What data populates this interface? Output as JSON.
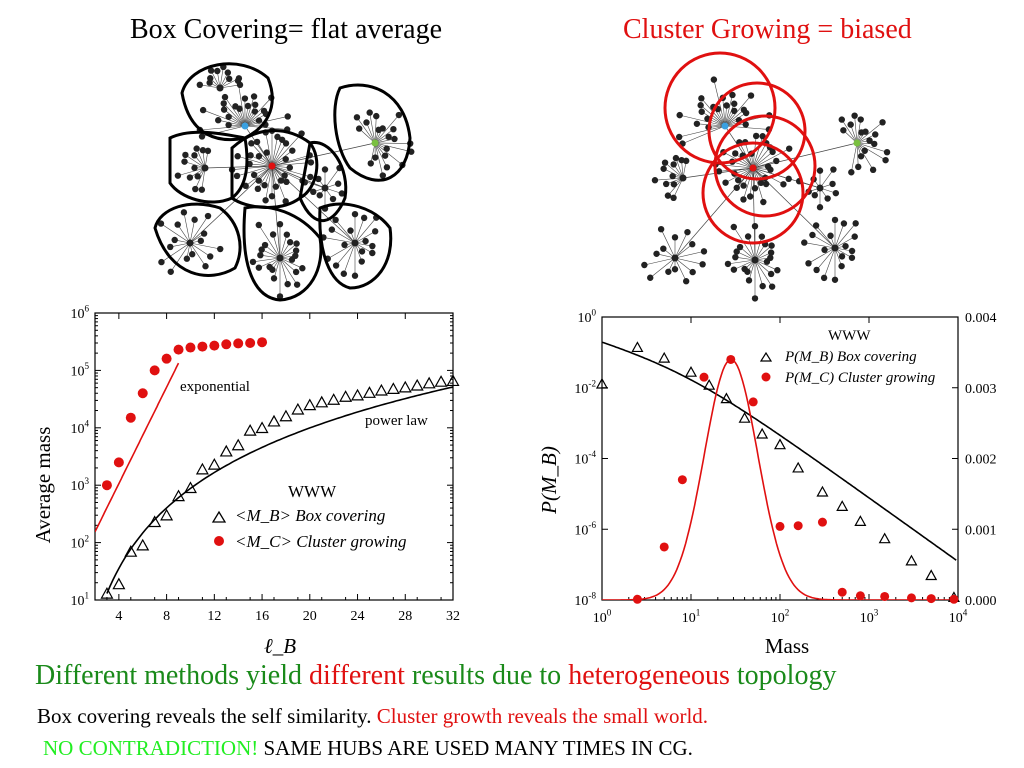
{
  "titles": {
    "left": "Box Covering= flat average",
    "right": "Cluster Growing = biased"
  },
  "colors": {
    "red": "#e01010",
    "green": "#1a8a1a",
    "lime": "#22ee22",
    "black": "#000000"
  },
  "footer": {
    "line1": {
      "a": "Different methods yield ",
      "b": "different",
      "c": " results due to ",
      "d": "heterogeneous",
      "e": " topology"
    },
    "line2": {
      "a": "Box covering reveals the self similarity. ",
      "b": "Cluster growth reveals the small world."
    },
    "line3": {
      "a": "NO CONTRADICTION! ",
      "b": "SAME HUBS ARE USED MANY TIMES IN CG."
    }
  },
  "chart_data": [
    {
      "type": "scatter",
      "ylabel": "Average mass",
      "xlabel": "ℓ_B",
      "xlim": [
        2,
        32
      ],
      "ylim": [
        10,
        1000000
      ],
      "yscale": "log",
      "xticks": [
        "4",
        "8",
        "12",
        "16",
        "20",
        "24",
        "28",
        "32"
      ],
      "yticks": [
        "10^1",
        "10^2",
        "10^3",
        "10^4",
        "10^5",
        "10^6"
      ],
      "legend_title": "WWW",
      "annotations": [
        "exponential",
        "power law"
      ],
      "series": [
        {
          "name": "<M_B> Box covering",
          "marker": "open-triangle",
          "points": [
            [
              3,
              13
            ],
            [
              4,
              19
            ],
            [
              5,
              70
            ],
            [
              6,
              90
            ],
            [
              7,
              230
            ],
            [
              8,
              300
            ],
            [
              9,
              650
            ],
            [
              10,
              900
            ],
            [
              11,
              1900
            ],
            [
              12,
              2300
            ],
            [
              13,
              3900
            ],
            [
              14,
              5000
            ],
            [
              15,
              9000
            ],
            [
              16,
              10000
            ],
            [
              17,
              13000
            ],
            [
              18,
              16000
            ],
            [
              19,
              21000
            ],
            [
              20,
              25000
            ],
            [
              21,
              28000
            ],
            [
              22,
              31000
            ],
            [
              23,
              35000
            ],
            [
              24,
              37000
            ],
            [
              25,
              41000
            ],
            [
              26,
              45000
            ],
            [
              27,
              48000
            ],
            [
              28,
              51000
            ],
            [
              29,
              55000
            ],
            [
              30,
              60000
            ],
            [
              31,
              64000
            ],
            [
              32,
              66000
            ]
          ]
        },
        {
          "name": "<M_C> Cluster growing",
          "marker": "filled-circle",
          "points": [
            [
              3,
              1000
            ],
            [
              4,
              2500
            ],
            [
              5,
              15000
            ],
            [
              6,
              40000
            ],
            [
              7,
              100000
            ],
            [
              8,
              160000
            ],
            [
              9,
              230000
            ],
            [
              10,
              250000
            ],
            [
              11,
              260000
            ],
            [
              12,
              270000
            ],
            [
              13,
              285000
            ],
            [
              14,
              295000
            ],
            [
              15,
              300000
            ],
            [
              16,
              310000
            ]
          ]
        }
      ]
    },
    {
      "type": "scatter",
      "ylabel": "P(M_B)",
      "xlabel": "Mass",
      "xlim": [
        1,
        10000
      ],
      "xscale": "log",
      "ylim": [
        1e-08,
        1
      ],
      "yscale": "log",
      "y2lim": [
        0,
        0.004
      ],
      "xticks": [
        "10^0",
        "10^1",
        "10^2",
        "10^3",
        "10^4"
      ],
      "yticks": [
        "10^0",
        "10^-2",
        "10^-4",
        "10^-6",
        "10^-8"
      ],
      "y2ticks": [
        "0.000",
        "0.001",
        "0.002",
        "0.003",
        "0.004"
      ],
      "legend_title": "WWW",
      "series": [
        {
          "name": "P(M_B) Box covering",
          "marker": "open-triangle",
          "axis": "left",
          "points": [
            [
              1,
              0.013
            ],
            [
              2.5,
              0.14
            ],
            [
              5,
              0.07
            ],
            [
              10,
              0.028
            ],
            [
              16,
              0.012
            ],
            [
              25,
              0.005
            ],
            [
              40,
              0.0014
            ],
            [
              63,
              0.0005
            ],
            [
              100,
              0.00025
            ],
            [
              160,
              5.5e-05
            ],
            [
              300,
              1.15e-05
            ],
            [
              500,
              4.5e-06
            ],
            [
              800,
              1.7e-06
            ],
            [
              1500,
              5.5e-07
            ],
            [
              3000,
              1.3e-07
            ],
            [
              5000,
              5e-08
            ],
            [
              9000,
              1.2e-08
            ]
          ]
        },
        {
          "name": "P(M_C) Cluster growing",
          "marker": "filled-circle",
          "axis": "right",
          "points": [
            [
              2.5,
              1e-05
            ],
            [
              5,
              0.00075
            ],
            [
              8,
              0.0017
            ],
            [
              14,
              0.00315
            ],
            [
              28,
              0.0034
            ],
            [
              50,
              0.0028
            ],
            [
              100,
              0.00104
            ],
            [
              160,
              0.00105
            ],
            [
              300,
              0.0011
            ],
            [
              500,
              0.00011
            ],
            [
              800,
              6e-05
            ],
            [
              1500,
              5e-05
            ],
            [
              3000,
              3e-05
            ],
            [
              5000,
              2e-05
            ],
            [
              9000,
              1e-05
            ]
          ]
        }
      ]
    }
  ]
}
